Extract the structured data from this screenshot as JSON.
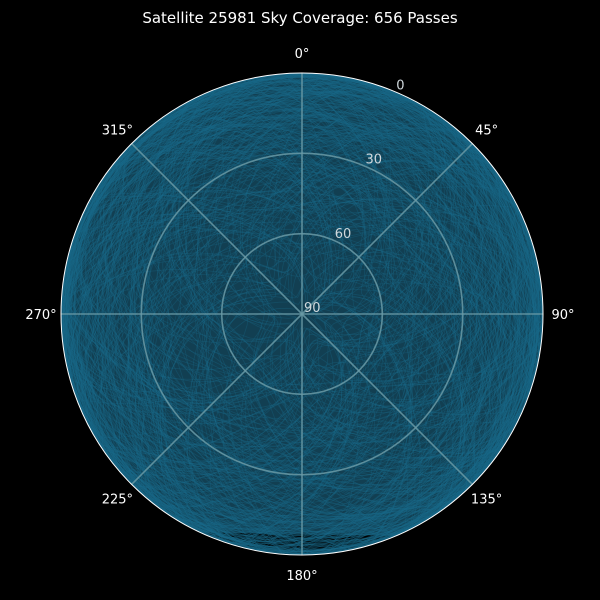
{
  "chart_data": {
    "type": "polar",
    "title": "Satellite 25981 Sky Coverage: 656 Passes",
    "satellite_id": "25981",
    "pass_count": 656,
    "theta_zero_location": "N",
    "theta_direction": "clockwise",
    "azimuth_ticks": [
      0,
      45,
      90,
      135,
      180,
      225,
      270,
      315
    ],
    "azimuth_tick_labels": [
      "0°",
      "45°",
      "90°",
      "135°",
      "180°",
      "225°",
      "270°",
      "315°"
    ],
    "elevation_ticks": [
      0,
      30,
      60,
      90
    ],
    "elevation_tick_labels": [
      "0",
      "30",
      "60",
      "90"
    ],
    "elevation_range": [
      90,
      0
    ],
    "grid": true,
    "background_color": "#000000",
    "track_color": "#1a6a8a",
    "grid_color": "#6a9aa6",
    "coverage_note_visible": "tracks fill the whole sky except a wedge roughly between azimuth 157° and 205° at elevation below ~13°"
  }
}
